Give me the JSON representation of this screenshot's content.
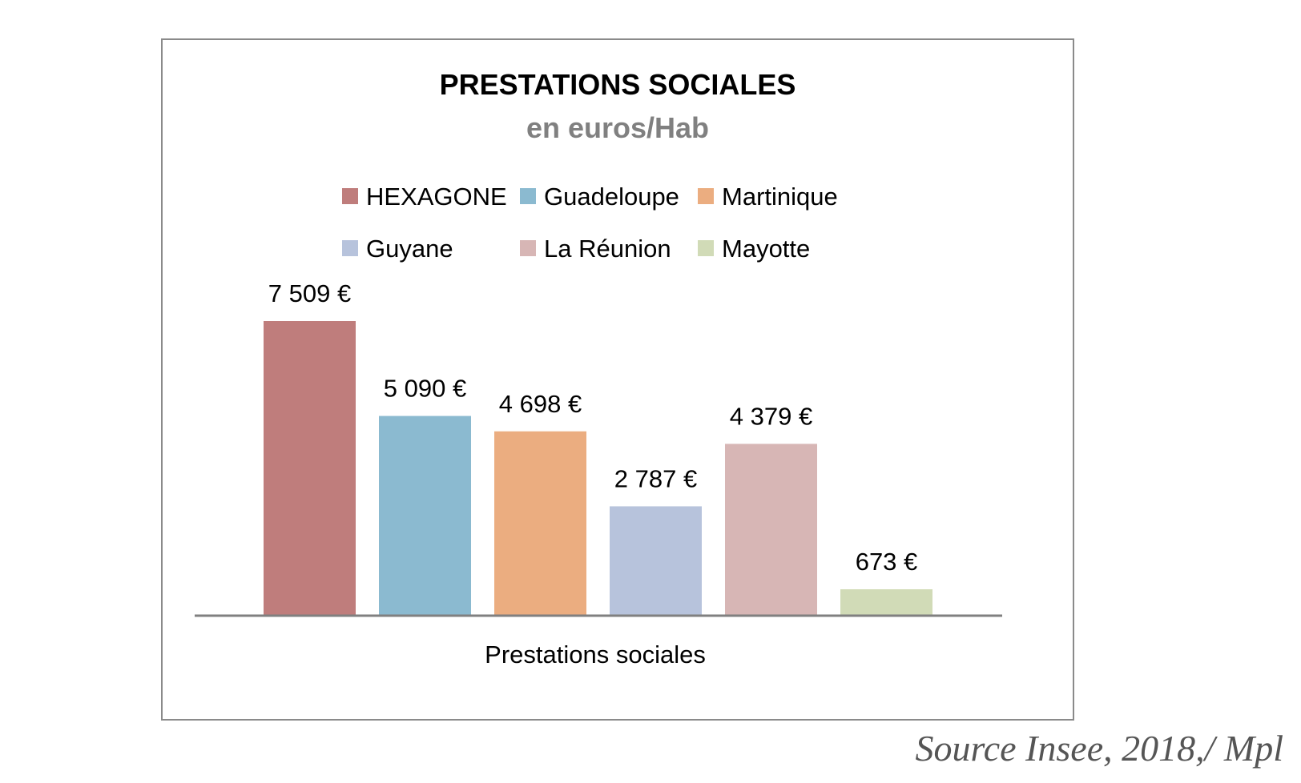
{
  "chart_data": {
    "type": "bar",
    "title": "PRESTATIONS SOCIALES",
    "subtitle": "en euros/Hab",
    "xlabel": "Prestations sociales",
    "ylabel": "",
    "ylim": [
      0,
      7509
    ],
    "grid": false,
    "legend_position": "top",
    "categories": [
      "Prestations sociales"
    ],
    "series": [
      {
        "name": "HEXAGONE",
        "values": [
          7509
        ],
        "label": "7 509 €",
        "color": "#bf7d7c"
      },
      {
        "name": "Guadeloupe",
        "values": [
          5090
        ],
        "label": "5 090 €",
        "color": "#8bbad0"
      },
      {
        "name": "Martinique",
        "values": [
          4698
        ],
        "label": "4 698 €",
        "color": "#ebad80"
      },
      {
        "name": "Guyane",
        "values": [
          2787
        ],
        "label": "2 787 €",
        "color": "#b7c3dc"
      },
      {
        "name": "La Réunion",
        "values": [
          4379
        ],
        "label": "4 379 €",
        "color": "#d7b6b5"
      },
      {
        "name": "Mayotte",
        "values": [
          673
        ],
        "label": "673 €",
        "color": "#d1dbb7"
      }
    ]
  },
  "source": "Source Insee, 2018,/ Mpl"
}
